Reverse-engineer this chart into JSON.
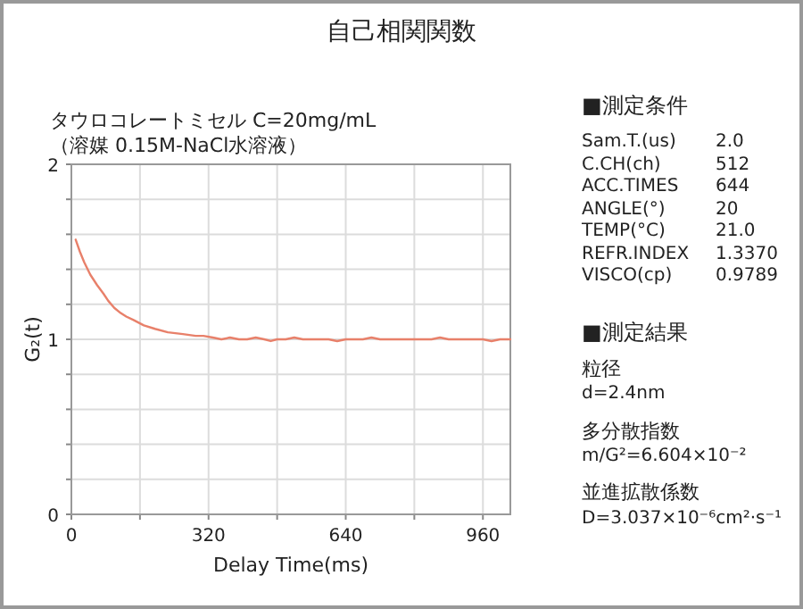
{
  "chart_data": {
    "type": "line",
    "title": "自己相関関数",
    "subtitle": "タウロコレートミセル C=20mg/mL\n（溶媒 0.15M-NaCl水溶液）",
    "xlabel": "Delay Time(ms)",
    "ylabel": "G₂(t)",
    "xlim": [
      0,
      1024
    ],
    "xticks": [
      0,
      {
        "value": 160,
        "label": null
      },
      320,
      {
        "value": 480,
        "label": null
      },
      640,
      {
        "value": 800,
        "label": null
      },
      960
    ],
    "ylim": [
      0,
      2
    ],
    "yticks": [
      0,
      {
        "value": 0.2,
        "label": null
      },
      {
        "value": 0.4,
        "label": null
      },
      {
        "value": 0.6,
        "label": null
      },
      {
        "value": 0.8,
        "label": null
      },
      1,
      {
        "value": 1.2,
        "label": null
      },
      {
        "value": 1.4,
        "label": null
      },
      {
        "value": 1.6,
        "label": null
      },
      {
        "value": 1.8,
        "label": null
      },
      2
    ],
    "grid": true,
    "marker": "none",
    "line_style": "solid",
    "series": [
      {
        "color": "#e8806a",
        "x": [
          10,
          20,
          30,
          44,
          60,
          75,
          86,
          100,
          115,
          128,
          145,
          169,
          195,
          225,
          260,
          290,
          308,
          330,
          350,
          370,
          391,
          410,
          430,
          450,
          465,
          480,
          500,
          520,
          540,
          560,
          580,
          600,
          620,
          640,
          660,
          680,
          700,
          720,
          740,
          760,
          780,
          800,
          820,
          840,
          860,
          880,
          900,
          920,
          940,
          960,
          980,
          1000,
          1024
        ],
        "values": [
          1.57,
          1.5,
          1.44,
          1.37,
          1.31,
          1.26,
          1.22,
          1.18,
          1.15,
          1.13,
          1.11,
          1.08,
          1.06,
          1.04,
          1.03,
          1.02,
          1.02,
          1.01,
          1.0,
          1.01,
          1.0,
          1.0,
          1.01,
          1.0,
          0.99,
          1.0,
          1.0,
          1.01,
          1.0,
          1.0,
          1.0,
          1.0,
          0.99,
          1.0,
          1.0,
          1.0,
          1.01,
          1.0,
          1.0,
          1.0,
          1.0,
          1.0,
          1.0,
          1.0,
          1.01,
          1.0,
          1.0,
          1.0,
          1.0,
          1.0,
          0.99,
          1.0,
          1.0
        ]
      }
    ],
    "annotations": [
      "■測定条件",
      "Sam.T.(us)\t2.0",
      "C.CH(ch)\t512",
      "ACC.TIMES\t644",
      "ANGLE(°)\t20",
      "TEMP(°C)\t21.0",
      "REFR.INDEX\t1.3370",
      "VISCO(cp)\t0.9789",
      "■測定結果",
      "粒径",
      "d=2.4nm",
      "多分散指数",
      "m/G²=6.604×10⁻²",
      "並進拡散係数",
      "D=3.037×10⁻⁶cm²·s⁻¹"
    ]
  }
}
